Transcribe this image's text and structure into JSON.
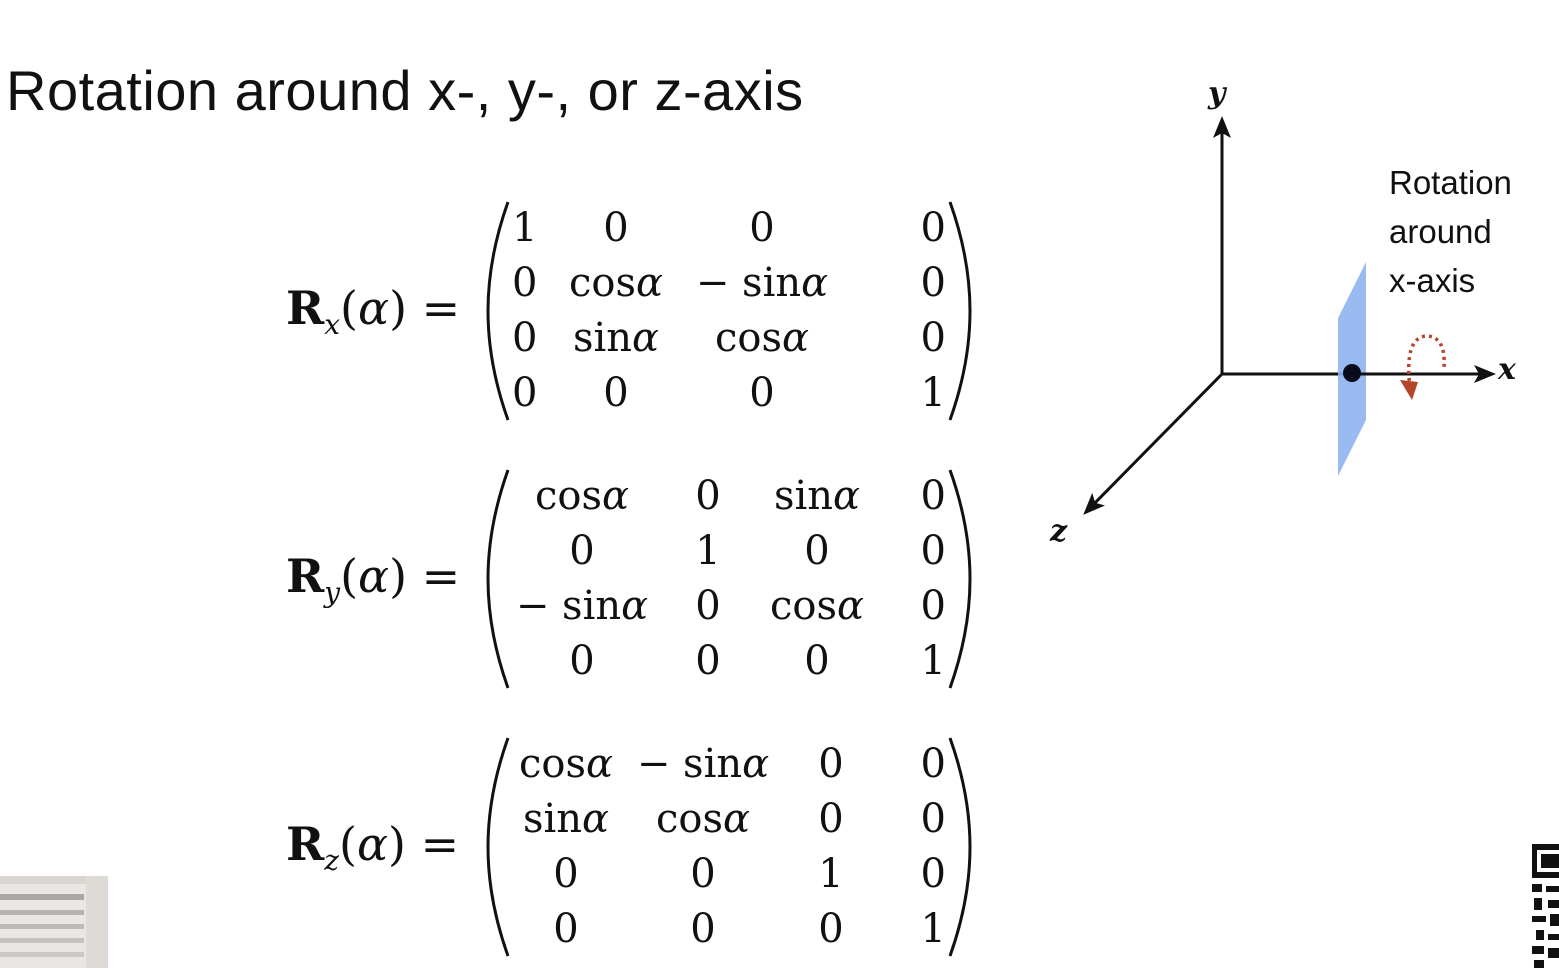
{
  "slide": {
    "title": "Rotation around x-, y-, or z-axis"
  },
  "equations": [
    {
      "name": "rx",
      "symbol": "R",
      "subscript": "x",
      "argument": "α",
      "rows": [
        [
          "1",
          "0",
          "0",
          "0"
        ],
        [
          "0",
          "cos α",
          "− sin α",
          "0"
        ],
        [
          "0",
          "sin α",
          "cos α",
          "0"
        ],
        [
          "0",
          "0",
          "0",
          "1"
        ]
      ]
    },
    {
      "name": "ry",
      "symbol": "R",
      "subscript": "y",
      "argument": "α",
      "rows": [
        [
          "cos α",
          "0",
          "sin α",
          "0"
        ],
        [
          "0",
          "1",
          "0",
          "0"
        ],
        [
          "− sin α",
          "0",
          "cos α",
          "0"
        ],
        [
          "0",
          "0",
          "0",
          "1"
        ]
      ]
    },
    {
      "name": "rz",
      "symbol": "R",
      "subscript": "z",
      "argument": "α",
      "rows": [
        [
          "cos α",
          "− sin α",
          "0",
          "0"
        ],
        [
          "sin α",
          "cos α",
          "0",
          "0"
        ],
        [
          "0",
          "0",
          "1",
          "0"
        ],
        [
          "0",
          "0",
          "0",
          "1"
        ]
      ]
    }
  ],
  "diagram": {
    "axis_y": "y",
    "axis_x": "x",
    "axis_z": "z",
    "caption_lines": [
      "Rotation",
      "around",
      "x-axis"
    ],
    "plane_color": "#8fb4ef",
    "rotation_arrow_color": "#b5452a"
  }
}
